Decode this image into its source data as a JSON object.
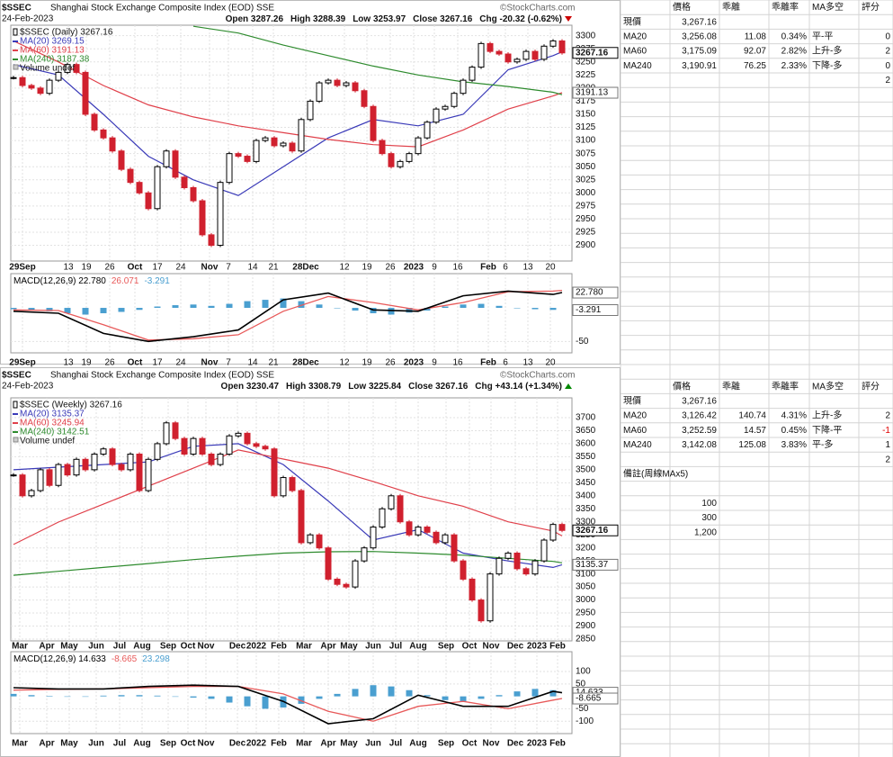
{
  "chart_data": [
    {
      "type": "candlestick",
      "symbol": "$SSEC",
      "title": "Shanghai Stock Exchange Composite Index (EOD) SSE",
      "date": "24-Feb-2023",
      "source": "©StockCharts.com",
      "ohlc": [
        "Open 3287.26",
        "High 3288.39",
        "Low 3253.97",
        "Close 3267.16",
        "Chg -20.32 (-0.62%)"
      ],
      "price": {
        "name": "$SSEC (Daily) 3267.16",
        "up_color": "#000000",
        "down_color": "#d0202e",
        "values": [
          3220,
          3205,
          3200,
          3190,
          3215,
          3230,
          3245,
          3230,
          3150,
          3120,
          3105,
          3080,
          3045,
          3020,
          3000,
          2970,
          3050,
          3080,
          3030,
          3010,
          2985,
          2920,
          2900,
          3020,
          3075,
          3070,
          3060,
          3100,
          3105,
          3090,
          3095,
          3080,
          3140,
          3175,
          3210,
          3215,
          3205,
          3210,
          3195,
          3165,
          3100,
          3075,
          3050,
          3060,
          3075,
          3105,
          3135,
          3160,
          3165,
          3190,
          3215,
          3240,
          3285,
          3270,
          3265,
          3250,
          3255,
          3270,
          3255,
          3280,
          3290,
          3267.16
        ]
      },
      "volume_label": "Volume undef",
      "lines": [
        {
          "name": "MA(20) 3269.15",
          "color": "#3a3ab8",
          "x": [
            0,
            5,
            10,
            15,
            20,
            25,
            30,
            35,
            40,
            45,
            50,
            55,
            60,
            61
          ],
          "values": [
            3245,
            3225,
            3150,
            3070,
            3025,
            2995,
            3050,
            3105,
            3140,
            3128,
            3150,
            3235,
            3262,
            3269.15
          ]
        },
        {
          "name": "MA(60) 3191.13",
          "color": "#e0404a",
          "x": [
            0,
            5,
            10,
            15,
            20,
            25,
            30,
            35,
            40,
            45,
            50,
            55,
            60,
            61
          ],
          "values": [
            3290,
            3250,
            3205,
            3168,
            3145,
            3128,
            3115,
            3102,
            3092,
            3088,
            3120,
            3160,
            3185,
            3191.13
          ]
        },
        {
          "name": "MA(240) 3187.38",
          "color": "#2e8b2e",
          "x": [
            0,
            5,
            10,
            15,
            20,
            25,
            30,
            35,
            40,
            45,
            50,
            55,
            60,
            61
          ],
          "values": [
            null,
            null,
            null,
            null,
            3318,
            3305,
            3282,
            3262,
            3242,
            3225,
            3212,
            3203,
            3192,
            3187.38
          ]
        }
      ],
      "xlim": [
        -0.3,
        62.1
      ],
      "xticks": [
        {
          "value": 1.0,
          "label": "29Sep"
        },
        {
          "value": 6.1,
          "label": "13"
        },
        {
          "value": 8.1,
          "label": "19"
        },
        {
          "value": 10.7,
          "label": "26"
        },
        {
          "value": 13.5,
          "label": "Oct"
        },
        {
          "value": 16,
          "label": "17"
        },
        {
          "value": 18.6,
          "label": "24"
        },
        {
          "value": 21.8,
          "label": "Nov"
        },
        {
          "value": 23.9,
          "label": "7"
        },
        {
          "value": 26.6,
          "label": "14"
        },
        {
          "value": 28.9,
          "label": "21"
        },
        {
          "value": 32.5,
          "label": "28Dec"
        },
        {
          "value": 36.8,
          "label": "12"
        },
        {
          "value": 39.3,
          "label": "19"
        },
        {
          "value": 41.9,
          "label": "26"
        },
        {
          "value": 44.5,
          "label": "2023"
        },
        {
          "value": 46.8,
          "label": "9"
        },
        {
          "value": 49.4,
          "label": "16"
        },
        {
          "value": 52.8,
          "label": "Feb"
        },
        {
          "value": 54.7,
          "label": "6"
        },
        {
          "value": 57.2,
          "label": "13"
        },
        {
          "value": 59.7,
          "label": "20"
        }
      ],
      "ylim": [
        2870,
        3320
      ],
      "yticks": [
        2900,
        2925,
        2950,
        2975,
        3000,
        3025,
        3050,
        3075,
        3100,
        3125,
        3150,
        3175,
        3200,
        3225,
        3250,
        3275,
        3300
      ],
      "grid": true,
      "price_tags": [
        {
          "value": 3267.16,
          "label": "3267.16"
        },
        {
          "value": 3191.13,
          "label": "3191.13"
        }
      ],
      "macd": {
        "ylim": [
          -67,
          51
        ],
        "yticks": [
          -50
        ],
        "line": {
          "name": "MACD(12,26,9) 22.780",
          "color": "#000000",
          "x": [
            0,
            5,
            10,
            15,
            20,
            25,
            30,
            35,
            40,
            45,
            50,
            55,
            60,
            61
          ],
          "values": [
            -5,
            -8,
            -38,
            -50,
            -43,
            -33,
            12,
            22,
            -3,
            -5,
            18,
            25,
            20,
            22.78
          ]
        },
        "signal": {
          "name": "26.071",
          "color": "#e85a5a",
          "x": [
            0,
            5,
            10,
            15,
            20,
            25,
            30,
            35,
            40,
            45,
            50,
            55,
            60,
            61
          ],
          "values": [
            -3,
            -4,
            -25,
            -48,
            -46,
            -40,
            -5,
            17,
            8,
            -3,
            8,
            24,
            25,
            26.071
          ]
        },
        "histogram": {
          "name": "-3.291",
          "color": "#4a9fd0",
          "x": [
            0,
            2,
            4,
            6,
            8,
            10,
            12,
            14,
            16,
            18,
            20,
            22,
            24,
            26,
            28,
            30,
            32,
            34,
            36,
            38,
            40,
            42,
            44,
            46,
            48,
            50,
            52,
            54,
            56,
            58,
            60
          ],
          "values": [
            -2,
            -3,
            -5,
            -8,
            -10,
            -8,
            -6,
            -3,
            2,
            4,
            5,
            3,
            6,
            10,
            12,
            14,
            10,
            5,
            0,
            -4,
            -8,
            -10,
            -7,
            -4,
            2,
            5,
            6,
            3,
            0,
            -2,
            -3
          ]
        },
        "tags": [
          {
            "value": 22.78,
            "label": "22.780"
          },
          {
            "value": -3.291,
            "label": "-3.291"
          }
        ]
      }
    },
    {
      "type": "candlestick",
      "symbol": "$SSEC",
      "title": "Shanghai Stock Exchange Composite Index (EOD) SSE",
      "date": "24-Feb-2023",
      "source": "©StockCharts.com",
      "ohlc": [
        "Open 3230.47",
        "High 3308.79",
        "Low 3225.84",
        "Close 3267.16",
        "Chg +43.14 (+1.34%)"
      ],
      "price": {
        "name": "$SSEC (Weekly) 3267.16",
        "up_color": "#000000",
        "down_color": "#d0202e",
        "values": [
          3480,
          3400,
          3420,
          3500,
          3440,
          3520,
          3480,
          3540,
          3500,
          3560,
          3580,
          3520,
          3500,
          3560,
          3420,
          3540,
          3600,
          3680,
          3620,
          3560,
          3620,
          3560,
          3520,
          3560,
          3630,
          3640,
          3600,
          3590,
          3580,
          3400,
          3470,
          3420,
          3220,
          3250,
          3200,
          3080,
          3060,
          3050,
          3150,
          3200,
          3280,
          3350,
          3400,
          3300,
          3250,
          3280,
          3260,
          3220,
          3250,
          3150,
          3080,
          3000,
          2920,
          3100,
          3160,
          3180,
          3120,
          3100,
          3150,
          3230,
          3290,
          3267.16
        ]
      },
      "volume_label": "Volume undef",
      "lines": [
        {
          "name": "MA(20) 3135.37",
          "color": "#3a3ab8",
          "x": [
            0,
            5,
            10,
            15,
            20,
            25,
            30,
            35,
            40,
            45,
            50,
            55,
            60,
            61
          ],
          "values": [
            3500,
            3510,
            3520,
            3530,
            3590,
            3600,
            3520,
            3380,
            3230,
            3270,
            3180,
            3150,
            3125,
            3135.37
          ]
        },
        {
          "name": "MA(60) 3245.94",
          "color": "#e0404a",
          "x": [
            0,
            5,
            10,
            15,
            20,
            25,
            30,
            35,
            40,
            45,
            50,
            55,
            60,
            61
          ],
          "values": [
            3213,
            3299,
            3368,
            3437,
            3506,
            3576,
            3541,
            3506,
            3455,
            3400,
            3360,
            3300,
            3265,
            3245.94
          ]
        },
        {
          "name": "MA(240) 3142.51",
          "color": "#2e8b2e",
          "x": [
            0,
            5,
            10,
            15,
            20,
            25,
            30,
            35,
            40,
            45,
            50,
            55,
            60,
            61
          ],
          "values": [
            3095,
            3110,
            3125,
            3140,
            3155,
            3168,
            3180,
            3185,
            3186,
            3180,
            3172,
            3160,
            3148,
            3142.51
          ]
        }
      ],
      "xlim": [
        -0.3,
        62.1
      ],
      "xticks": [
        {
          "value": 0.7,
          "label": "Mar"
        },
        {
          "value": 3.7,
          "label": "Apr"
        },
        {
          "value": 6.2,
          "label": "May"
        },
        {
          "value": 9.2,
          "label": "Jun"
        },
        {
          "value": 11.8,
          "label": "Jul"
        },
        {
          "value": 14.3,
          "label": "Aug"
        },
        {
          "value": 17.2,
          "label": "Sep"
        },
        {
          "value": 19.4,
          "label": "Oct"
        },
        {
          "value": 21.4,
          "label": "Nov"
        },
        {
          "value": 24.9,
          "label": "Dec"
        },
        {
          "value": 27,
          "label": "2022"
        },
        {
          "value": 29.5,
          "label": "Feb"
        },
        {
          "value": 32.3,
          "label": "Mar"
        },
        {
          "value": 35,
          "label": "Apr"
        },
        {
          "value": 37.3,
          "label": "May"
        },
        {
          "value": 40,
          "label": "Jun"
        },
        {
          "value": 42.5,
          "label": "Jul"
        },
        {
          "value": 45,
          "label": "Aug"
        },
        {
          "value": 48.1,
          "label": "Sep"
        },
        {
          "value": 50.7,
          "label": "Oct"
        },
        {
          "value": 53.1,
          "label": "Nov"
        },
        {
          "value": 55.8,
          "label": "Dec"
        },
        {
          "value": 58.2,
          "label": "2023"
        },
        {
          "value": 60.5,
          "label": "Feb"
        }
      ],
      "ylim": [
        2843,
        3776
      ],
      "yticks": [
        2850,
        2900,
        2950,
        3000,
        3050,
        3100,
        3150,
        3200,
        3250,
        3300,
        3350,
        3400,
        3450,
        3500,
        3550,
        3600,
        3650,
        3700
      ],
      "grid": true,
      "price_tags": [
        {
          "value": 3267.16,
          "label": "3267.16"
        },
        {
          "value": 3135.37,
          "label": "3135.37"
        }
      ],
      "macd": {
        "ylim": [
          -150,
          180
        ],
        "yticks": [
          -100,
          -50,
          50,
          100
        ],
        "line": {
          "name": "MACD(12,26,9) 14.633",
          "color": "#000000",
          "x": [
            0,
            5,
            10,
            15,
            20,
            25,
            30,
            35,
            40,
            45,
            50,
            55,
            60,
            61
          ],
          "values": [
            35,
            30,
            30,
            40,
            45,
            40,
            -20,
            -110,
            -90,
            5,
            -40,
            -40,
            20,
            14.633
          ]
        },
        "signal": {
          "name": "-8.665",
          "color": "#e85a5a",
          "x": [
            0,
            5,
            10,
            15,
            20,
            25,
            30,
            35,
            40,
            45,
            50,
            55,
            60,
            61
          ],
          "values": [
            25,
            28,
            30,
            35,
            40,
            40,
            10,
            -60,
            -100,
            -40,
            -20,
            -50,
            -15,
            -8.665
          ]
        },
        "histogram": {
          "name": "23.298",
          "color": "#4a9fd0",
          "x": [
            0,
            2,
            4,
            6,
            8,
            10,
            12,
            14,
            16,
            18,
            20,
            22,
            24,
            26,
            28,
            30,
            32,
            34,
            36,
            38,
            40,
            42,
            44,
            46,
            48,
            50,
            52,
            54,
            56,
            58,
            60
          ],
          "values": [
            10,
            5,
            2,
            0,
            0,
            3,
            5,
            5,
            3,
            0,
            -5,
            -10,
            -25,
            -40,
            -50,
            -45,
            -30,
            -10,
            10,
            30,
            45,
            40,
            25,
            5,
            -15,
            -20,
            -10,
            5,
            20,
            30,
            25
          ]
        },
        "tags": [
          {
            "value": 14.633,
            "label": "14.633"
          },
          {
            "value": -8.665,
            "label": "-8.665"
          }
        ]
      }
    }
  ],
  "spreadsheet": [
    {
      "header": [
        "價格",
        "乖離",
        "乖離率",
        "MA多空",
        "評分"
      ],
      "rows": [
        [
          "現價",
          "3,267.16"
        ],
        [
          "MA20",
          "3,256.08",
          "11.08",
          "0.34%",
          "平-平",
          "0"
        ],
        [
          "MA60",
          "3,175.09",
          "92.07",
          "2.82%",
          "上升-多",
          "2"
        ],
        [
          "MA240",
          "3,190.91",
          "76.25",
          "2.33%",
          "下降-多",
          "0"
        ],
        [
          null,
          null,
          null,
          null,
          null,
          "2"
        ]
      ]
    },
    {
      "header": [
        "價格",
        "乖離",
        "乖離率",
        "MA多空",
        "評分"
      ],
      "rows": [
        [
          "現價",
          "3,267.16"
        ],
        [
          "MA20",
          "3,126.42",
          "140.74",
          "4.31%",
          "上升-多",
          "2"
        ],
        [
          "MA60",
          "3,252.59",
          "14.57",
          "0.45%",
          "下降-平",
          "-1"
        ],
        [
          "MA240",
          "3,142.08",
          "125.08",
          "3.83%",
          "平-多",
          "1"
        ],
        [
          null,
          null,
          null,
          null,
          null,
          "2"
        ]
      ],
      "note": "備註(周線MAx5)",
      "extra": [
        "100",
        "300",
        "1,200"
      ]
    }
  ]
}
